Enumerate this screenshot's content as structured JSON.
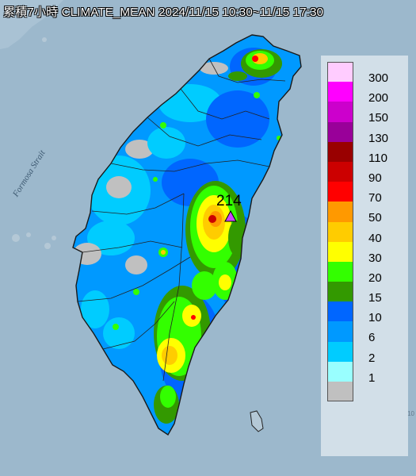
{
  "title": "累積7小時 CLIMATE_MEAN 2024/11/15 10:30~11/15 17:30",
  "sea_label": "Formosa Strait",
  "peak_value": "214",
  "corner_note": "10",
  "legend": [
    {
      "label": "300",
      "color": "#ffccff"
    },
    {
      "label": "200",
      "color": "#ff00ff"
    },
    {
      "label": "150",
      "color": "#cc00cc"
    },
    {
      "label": "130",
      "color": "#990099"
    },
    {
      "label": "110",
      "color": "#990000"
    },
    {
      "label": "90",
      "color": "#cc0000"
    },
    {
      "label": "70",
      "color": "#ff0000"
    },
    {
      "label": "50",
      "color": "#ff9900"
    },
    {
      "label": "40",
      "color": "#ffcc00"
    },
    {
      "label": "30",
      "color": "#ffff00"
    },
    {
      "label": "20",
      "color": "#33ff00"
    },
    {
      "label": "15",
      "color": "#339900"
    },
    {
      "label": "10",
      "color": "#0066ff"
    },
    {
      "label": "6",
      "color": "#0099ff"
    },
    {
      "label": "2",
      "color": "#00ccff"
    },
    {
      "label": "1",
      "color": "#99ffff"
    },
    {
      "label": "",
      "color": "#c0c0c0"
    }
  ],
  "colors": {
    "sea": "#9cb8cc",
    "land_none": "#c0c0c0",
    "r1": "#99ffff",
    "r2": "#00ccff",
    "r6": "#0099ff",
    "r10": "#0066ff",
    "r15": "#339900",
    "r20": "#33ff00",
    "r30": "#ffff00",
    "r40": "#ffcc00",
    "r50": "#ff9900",
    "r70": "#ff0000",
    "r90": "#cc0000",
    "peak_marker": "#cc44ff"
  }
}
